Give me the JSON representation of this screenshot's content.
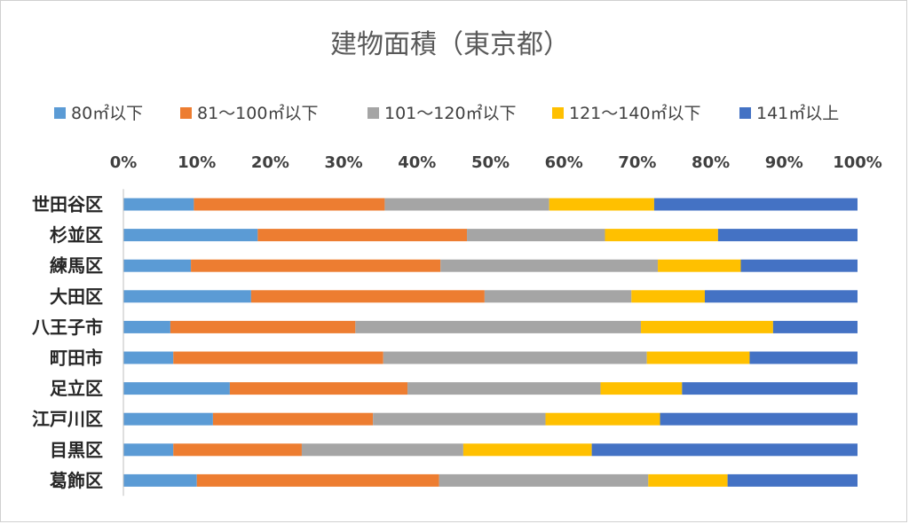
{
  "chart_data": {
    "type": "bar",
    "orientation": "horizontal",
    "stacked": "percent",
    "title": "建物面積（東京都）",
    "xlabel": "",
    "ylabel": "",
    "xlim": [
      0,
      100
    ],
    "x_ticks": [
      "0%",
      "10%",
      "20%",
      "30%",
      "40%",
      "50%",
      "60%",
      "70%",
      "80%",
      "90%",
      "100%"
    ],
    "x_axis_position": "top",
    "grid": false,
    "legend_position": "top",
    "categories": [
      "世田谷区",
      "杉並区",
      "練馬区",
      "大田区",
      "八王子市",
      "町田市",
      "足立区",
      "江戸川区",
      "目黒区",
      "葛飾区"
    ],
    "series": [
      {
        "name": "80㎡以下",
        "color": "#5B9BD5",
        "values": [
          9.6,
          18.3,
          9.2,
          17.4,
          6.4,
          6.8,
          14.5,
          12.2,
          6.8,
          10.0
        ]
      },
      {
        "name": "81～100㎡以下",
        "color": "#ED7D31",
        "values": [
          26.0,
          28.5,
          34.0,
          31.8,
          25.2,
          28.6,
          24.2,
          21.8,
          17.5,
          33.0
        ]
      },
      {
        "name": "101～120㎡以下",
        "color": "#A5A5A5",
        "values": [
          22.4,
          18.8,
          29.6,
          20.0,
          38.9,
          35.9,
          26.3,
          23.5,
          22.0,
          28.5
        ]
      },
      {
        "name": "121～140㎡以下",
        "color": "#FFC000",
        "values": [
          14.3,
          15.4,
          11.3,
          10.0,
          18.0,
          14.0,
          11.1,
          15.6,
          17.5,
          10.8
        ]
      },
      {
        "name": "141㎡以上",
        "color": "#4472C4",
        "values": [
          27.7,
          19.0,
          15.9,
          20.8,
          11.5,
          14.7,
          23.9,
          26.9,
          36.2,
          17.7
        ]
      }
    ]
  }
}
